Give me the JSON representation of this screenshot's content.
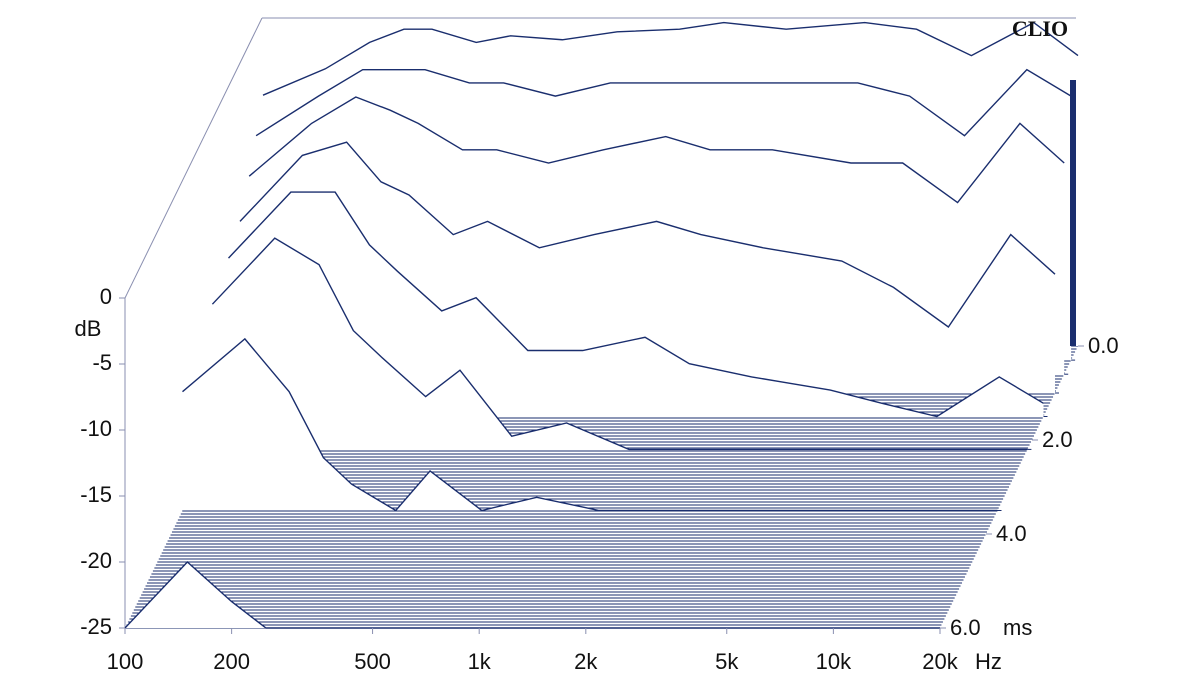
{
  "chart_data": {
    "type": "waterfall",
    "brand": "CLIO",
    "y_label": "dB",
    "x_unit": "Hz",
    "t_unit": "ms",
    "xscale": "log",
    "color": "#1a2e6e",
    "xlim": [
      100,
      20000
    ],
    "xticks": [
      100,
      200,
      500,
      {
        "value": 1000,
        "label": "1k"
      },
      {
        "value": 2000,
        "label": "2k"
      },
      {
        "value": 5000,
        "label": "5k"
      },
      {
        "value": 10000,
        "label": "10k"
      },
      {
        "value": 20000,
        "label": "20k"
      }
    ],
    "ylim": [
      -25,
      0
    ],
    "yticks": [
      0,
      -5,
      -10,
      -15,
      -20,
      -25
    ],
    "tlim": [
      0,
      6
    ],
    "tticks": [
      {
        "value": 0,
        "label": "0.0"
      },
      {
        "value": 2,
        "label": "2.0"
      },
      {
        "value": 4,
        "label": "4.0"
      },
      {
        "value": 6,
        "label": "6.0"
      }
    ],
    "x": [
      100,
      150,
      200,
      250,
      300,
      400,
      500,
      700,
      1000,
      1500,
      2000,
      3000,
      5000,
      7000,
      10000,
      15000,
      20000
    ],
    "series": [
      {
        "t": 0,
        "values": [
          -6,
          -4,
          -2,
          -1,
          -1,
          -2,
          -1.5,
          -1.8,
          -1.2,
          -1,
          -0.5,
          -1,
          -0.5,
          -1,
          -3,
          -0.5,
          -3
        ]
      },
      {
        "t": 0.3,
        "values": [
          -8,
          -5,
          -3,
          -3,
          -3,
          -4,
          -4,
          -5,
          -4,
          -4,
          -4,
          -4,
          -4,
          -5,
          -8,
          -3,
          -5
        ]
      },
      {
        "t": 0.6,
        "values": [
          -10,
          -6,
          -4,
          -5,
          -6,
          -8,
          -8,
          -9,
          -8,
          -7,
          -8,
          -8,
          -9,
          -9,
          -12,
          -6,
          -9
        ]
      },
      {
        "t": 1,
        "values": [
          -12,
          -7,
          -6,
          -9,
          -10,
          -13,
          -12,
          -14,
          -13,
          -12,
          -13,
          -14,
          -15,
          -17,
          -20,
          -13,
          -16
        ]
      },
      {
        "t": 1.5,
        "values": [
          -13,
          -8,
          -8,
          -12,
          -14,
          -17,
          -16,
          -20,
          -20,
          -19,
          -21,
          -22,
          -23,
          -24,
          -25,
          -22,
          -24
        ]
      },
      {
        "t": 2.2,
        "values": [
          -14,
          -9,
          -11,
          -16,
          -18,
          -21,
          -19,
          -24,
          -23,
          -25,
          -25,
          -25,
          -25,
          -25,
          -25,
          -25,
          -25
        ]
      },
      {
        "t": 3.5,
        "values": [
          -16,
          -12,
          -16,
          -21,
          -23,
          -25,
          -22,
          -25,
          -24,
          -25,
          -25,
          -25,
          -25,
          -25,
          -25,
          -25,
          -25
        ]
      },
      {
        "t": 6,
        "values": [
          -25,
          -20,
          -23,
          -25,
          -25,
          -25,
          -25,
          -25,
          -25,
          -25,
          -25,
          -25,
          -25,
          -25,
          -25,
          -25,
          -25
        ]
      }
    ]
  }
}
